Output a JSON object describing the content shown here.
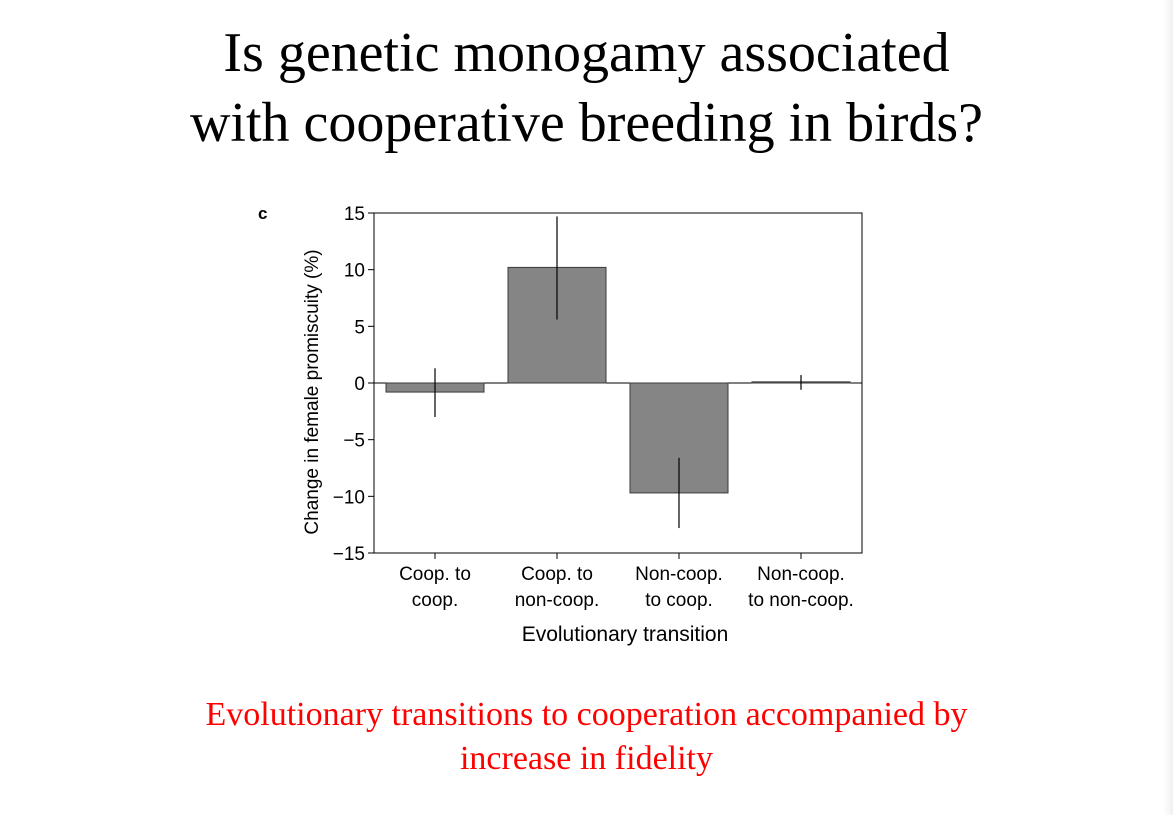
{
  "slide": {
    "title_lines": [
      "Is genetic monogamy associated",
      "with cooperative breeding in birds?"
    ],
    "caption_lines": [
      "Evolutionary transitions to cooperation accompanied by",
      "increase in fidelity"
    ],
    "caption_color": "#ff0000"
  },
  "chart_data": {
    "type": "bar",
    "panel_label": "c",
    "xlabel": "Evolutionary transition",
    "ylabel": "Change in female promiscuity (%)",
    "ylim": [
      -15,
      15
    ],
    "yticks": [
      15,
      10,
      5,
      0,
      -5,
      -10,
      -15
    ],
    "ytick_labels": [
      "15",
      "10",
      "5",
      "0",
      "−5",
      "−10",
      "−15"
    ],
    "categories": [
      [
        "Coop. to",
        "coop."
      ],
      [
        "Coop. to",
        "non-coop."
      ],
      [
        "Non-coop.",
        "to coop."
      ],
      [
        "Non-coop.",
        "to non-coop."
      ]
    ],
    "values": [
      -0.8,
      10.2,
      -9.7,
      0.1
    ],
    "error_low": [
      -3.0,
      5.6,
      -12.8,
      -0.6
    ],
    "error_high": [
      1.3,
      14.7,
      -6.6,
      0.7
    ],
    "bar_color": "#858585",
    "grid": false
  }
}
